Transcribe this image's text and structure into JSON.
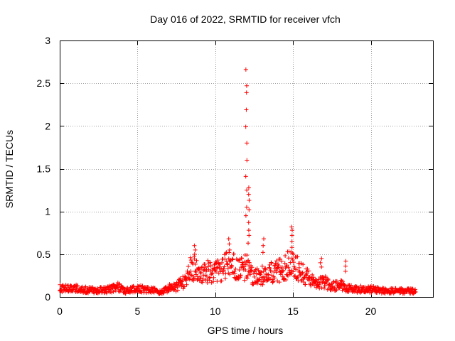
{
  "chart_data": {
    "type": "scatter",
    "title": "Day 016 of 2022, SRMTID for receiver vfch",
    "xlabel": "GPS time / hours",
    "ylabel": "SRMTID / TECUs",
    "xlim": [
      0,
      24
    ],
    "ylim": [
      0,
      3
    ],
    "x_ticks": [
      0,
      5,
      10,
      15,
      20
    ],
    "x_tick_labels": [
      "0",
      "5",
      "10",
      "15",
      "20"
    ],
    "y_ticks": [
      0,
      0.5,
      1,
      1.5,
      2,
      2.5,
      3
    ],
    "y_tick_labels": [
      "0",
      "0.5",
      "1",
      "1.5",
      "2",
      "2.5",
      "3"
    ],
    "grid": true,
    "marker": "+",
    "series": [
      {
        "name": "SRMTID",
        "color": "#ff0000",
        "profile": {
          "x": [
            0,
            1,
            2,
            3,
            3.8,
            4.2,
            5,
            6,
            6.5,
            7,
            7.5,
            8,
            8.5,
            9,
            9.5,
            10,
            10.5,
            11,
            11.5,
            12,
            12.5,
            13,
            13.5,
            14,
            14.5,
            15,
            15.5,
            16,
            16.5,
            17,
            17.5,
            18,
            18.5,
            19,
            20,
            21,
            22,
            22.9
          ],
          "y": [
            0.1,
            0.1,
            0.08,
            0.08,
            0.12,
            0.07,
            0.1,
            0.08,
            0.05,
            0.1,
            0.12,
            0.18,
            0.35,
            0.28,
            0.3,
            0.28,
            0.35,
            0.38,
            0.3,
            0.35,
            0.22,
            0.25,
            0.3,
            0.3,
            0.35,
            0.42,
            0.3,
            0.22,
            0.15,
            0.18,
            0.12,
            0.15,
            0.1,
            0.09,
            0.09,
            0.07,
            0.07,
            0.07
          ]
        },
        "spikes": [
          {
            "x": 12.0,
            "y": [
              2.66,
              2.47,
              2.39,
              2.19,
              1.99,
              1.8,
              1.6,
              1.41,
              1.25,
              1.05,
              0.95
            ]
          },
          {
            "x": 12.15,
            "y": [
              1.28,
              1.2,
              1.13,
              1.02,
              0.87,
              0.78,
              0.72,
              0.63
            ]
          },
          {
            "x": 8.7,
            "y": [
              0.6,
              0.55,
              0.5
            ]
          },
          {
            "x": 10.9,
            "y": [
              0.68,
              0.62,
              0.55
            ]
          },
          {
            "x": 13.1,
            "y": [
              0.68,
              0.6,
              0.52
            ]
          },
          {
            "x": 14.95,
            "y": [
              0.82,
              0.78,
              0.72,
              0.65,
              0.58
            ]
          },
          {
            "x": 16.8,
            "y": [
              0.45,
              0.4,
              0.35
            ]
          },
          {
            "x": 18.4,
            "y": [
              0.42,
              0.36,
              0.3
            ]
          }
        ]
      }
    ]
  }
}
